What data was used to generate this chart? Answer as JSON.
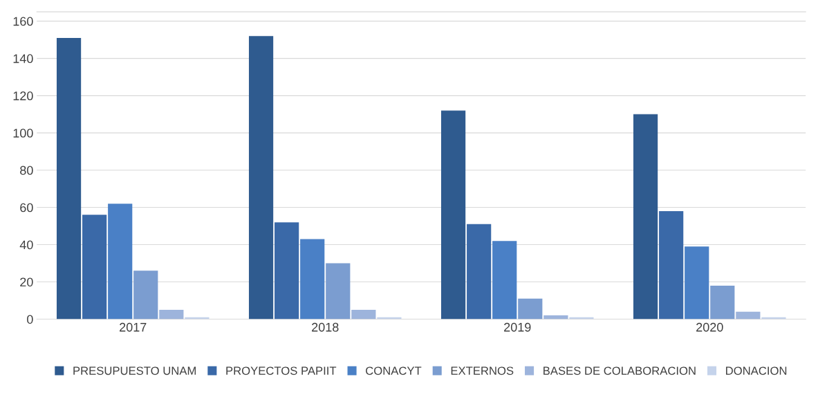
{
  "chart_data": {
    "type": "bar",
    "categories": [
      "2017",
      "2018",
      "2019",
      "2020"
    ],
    "series": [
      {
        "name": "PRESUPUESTO UNAM",
        "color": "#2f5b8f",
        "values": [
          151,
          152,
          112,
          110
        ]
      },
      {
        "name": "PROYECTOS PAPIIT",
        "color": "#3a69a8",
        "values": [
          56,
          52,
          51,
          58
        ]
      },
      {
        "name": "CONACYT",
        "color": "#4a80c6",
        "values": [
          62,
          43,
          42,
          39
        ]
      },
      {
        "name": "EXTERNOS",
        "color": "#7b9dd0",
        "values": [
          26,
          30,
          11,
          18
        ]
      },
      {
        "name": "BASES DE COLABORACION",
        "color": "#9db4dc",
        "values": [
          5,
          5,
          2,
          4
        ]
      },
      {
        "name": "DONACION",
        "color": "#c5d3eb",
        "values": [
          1,
          1,
          1,
          1
        ]
      }
    ],
    "ylim": [
      0,
      165
    ],
    "yticks": [
      0,
      20,
      40,
      60,
      80,
      100,
      120,
      140,
      160
    ],
    "grid": "y",
    "legend": "bottom"
  }
}
